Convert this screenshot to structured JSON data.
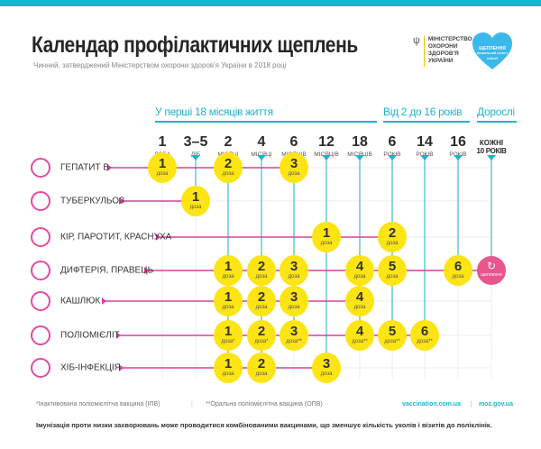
{
  "title": "Календар профілактичних щеплень",
  "subtitle": "Чинний, затверджений Міністерством охорони здоров'я України в 2018 році",
  "ministry": [
    "МІНІСТЕРСТВО",
    "ОХОРОНИ",
    "ЗДОРОВ'Я",
    "УКРАЇНИ"
  ],
  "heart_logo": {
    "line1": "ЩЕПЛЕННЯ",
    "line2": "ПРАВИЛЬНИЙ ЗАХИСТ",
    "line3": "unicef"
  },
  "groups": [
    "У перші 18 місяців життя",
    "Від 2 до 16 років",
    "Дорослі"
  ],
  "columns": [
    {
      "n": "1",
      "u": "ДОБА"
    },
    {
      "n": "3–5",
      "u": "ДІБ"
    },
    {
      "n": "2",
      "u": "МІСЯЦІ"
    },
    {
      "n": "4",
      "u": "МІСЯЦІ"
    },
    {
      "n": "6",
      "u": "МІСЯЦІВ"
    },
    {
      "n": "12",
      "u": "МІСЯЦІВ"
    },
    {
      "n": "18",
      "u": "МІСЯЦІВ"
    },
    {
      "n": "6",
      "u": "РОКІВ"
    },
    {
      "n": "14",
      "u": "РОКІВ"
    },
    {
      "n": "16",
      "u": "РОКІВ"
    },
    {
      "n": "КОЖНІ",
      "u": "10 РОКІВ"
    }
  ],
  "dose_label": "доза",
  "revaccination_label": "щеплення",
  "rows": [
    {
      "label": "ГЕПАТИТ В",
      "doses": [
        {
          "col": 0,
          "n": "1",
          "m": ""
        },
        {
          "col": 2,
          "n": "2",
          "m": ""
        },
        {
          "col": 4,
          "n": "3",
          "m": ""
        }
      ]
    },
    {
      "label": "ТУБЕРКУЛЬОЗ",
      "doses": [
        {
          "col": 1,
          "n": "1",
          "m": ""
        }
      ]
    },
    {
      "label": "КІР, ПАРОТИТ, КРАСНУХА",
      "doses": [
        {
          "col": 5,
          "n": "1",
          "m": ""
        },
        {
          "col": 7,
          "n": "2",
          "m": ""
        }
      ]
    },
    {
      "label": "ДИФТЕРІЯ, ПРАВЕЦЬ",
      "doses": [
        {
          "col": 2,
          "n": "1",
          "m": ""
        },
        {
          "col": 3,
          "n": "2",
          "m": ""
        },
        {
          "col": 4,
          "n": "3",
          "m": ""
        },
        {
          "col": 6,
          "n": "4",
          "m": ""
        },
        {
          "col": 7,
          "n": "5",
          "m": ""
        },
        {
          "col": 9,
          "n": "6",
          "m": ""
        }
      ]
    },
    {
      "label": "КАШЛЮК",
      "doses": [
        {
          "col": 2,
          "n": "1",
          "m": ""
        },
        {
          "col": 3,
          "n": "2",
          "m": ""
        },
        {
          "col": 4,
          "n": "3",
          "m": ""
        },
        {
          "col": 6,
          "n": "4",
          "m": ""
        }
      ]
    },
    {
      "label": "ПОЛІОМІЄЛІТ",
      "doses": [
        {
          "col": 2,
          "n": "1",
          "m": "*"
        },
        {
          "col": 3,
          "n": "2",
          "m": "*"
        },
        {
          "col": 4,
          "n": "3",
          "m": "**"
        },
        {
          "col": 6,
          "n": "4",
          "m": "**"
        },
        {
          "col": 7,
          "n": "5",
          "m": "**"
        },
        {
          "col": 8,
          "n": "6",
          "m": "**"
        }
      ]
    },
    {
      "label": "ХІБ-ІНФЕКЦІЯ",
      "doses": [
        {
          "col": 2,
          "n": "1",
          "m": ""
        },
        {
          "col": 3,
          "n": "2",
          "m": ""
        },
        {
          "col": 5,
          "n": "3",
          "m": ""
        }
      ]
    }
  ],
  "footnote1": "*Інактивована поліомієлітна вакцина (ІПВ)",
  "footnote2": "**Оральна поліомієлітна вакцина (ОПВ)",
  "link1": "vaccination.com.ua",
  "link2": "moz.gov.ua",
  "note": "Імунізація проти низки захворювань може проводитися комбінованими вакцинами, що зменшує кількість уколів і візитів до поліклінік.",
  "colors": {
    "accent": "#15b6cf",
    "dose": "#fde413",
    "line": "#d6409a",
    "revaccination": "#e8558f"
  }
}
